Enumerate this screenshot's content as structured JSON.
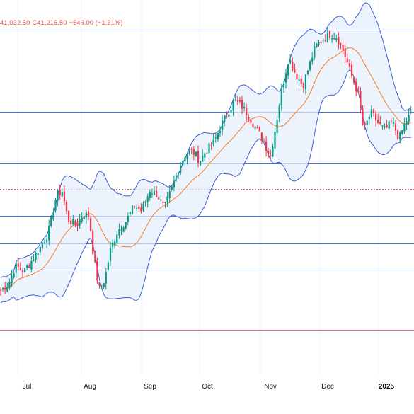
{
  "ohlc_readout": {
    "low": "41,032.50",
    "close_label": "C",
    "close": "41,216.50",
    "change": "−546.00 (−1.31%)"
  },
  "colors": {
    "up": "#089981",
    "down": "#f23645",
    "ma": "#f57c1f",
    "bands": "#3b5bdb",
    "band_fill": "#e6eefc",
    "hline": "#4a6cd4",
    "support": "#e36b7a"
  },
  "chart_data": {
    "type": "candlestick",
    "x_axis_labels": [
      "Jul",
      "Aug",
      "Sep",
      "Oct",
      "Nov",
      "Dec",
      "2025"
    ],
    "indicators": [
      "Bollinger Bands (upper, lower)",
      "Moving average (basis)"
    ],
    "horizontal_levels": [
      41880,
      41290,
      40920,
      40740,
      40545,
      40350,
      40160,
      39725
    ],
    "dashed_level": 40740,
    "series_monthly_anchor_closes": [
      {
        "x": "Jul",
        "close": 40000
      },
      {
        "x": "Aug",
        "close": 40470
      },
      {
        "x": "Sep",
        "close": 41050
      },
      {
        "x": "Oct",
        "close": 41380
      },
      {
        "x": "Nov",
        "close": 41500
      },
      {
        "x": "Dec",
        "close": 42280
      },
      {
        "x": "2025",
        "close": 41300
      }
    ],
    "last": {
      "low": 41032.5,
      "close": 41216.5,
      "change": -546.0,
      "change_pct": -1.31
    }
  }
}
